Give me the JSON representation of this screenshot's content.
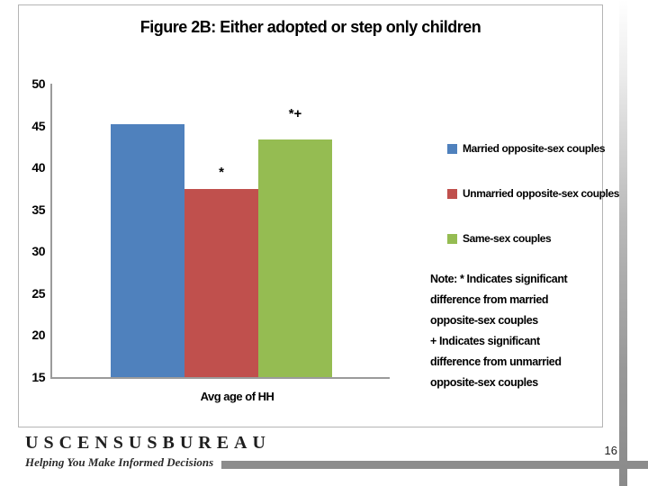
{
  "chart_data": {
    "type": "bar",
    "title": "Figure 2B: Either adopted or step only children",
    "categories": [
      "Avg age of HH"
    ],
    "series": [
      {
        "name": "Married  opposite-sex couples",
        "color": "#4F81BD",
        "values": [
          45.2
        ],
        "annotation": ""
      },
      {
        "name": "Unmarried opposite-sex couples",
        "color": "#C0504D",
        "values": [
          37.4
        ],
        "annotation": "*"
      },
      {
        "name": "Same-sex couples",
        "color": "#95BC52",
        "values": [
          43.3
        ],
        "annotation": "*+"
      }
    ],
    "xlabel": "Avg age of HH",
    "ylabel": "",
    "ylim": [
      15,
      50
    ],
    "yticks": [
      15,
      20,
      25,
      30,
      35,
      40,
      45,
      50
    ],
    "grid": false,
    "legend_position": "right",
    "notes": [
      "Note: * Indicates significant",
      "difference from married",
      "opposite-sex couples",
      "+ Indicates significant",
      "difference from unmarried",
      "opposite-sex couples"
    ]
  },
  "footer": {
    "logo_text": "USCENSUSBUREAU",
    "tagline": "Helping You Make Informed Decisions"
  },
  "page_number": "16"
}
